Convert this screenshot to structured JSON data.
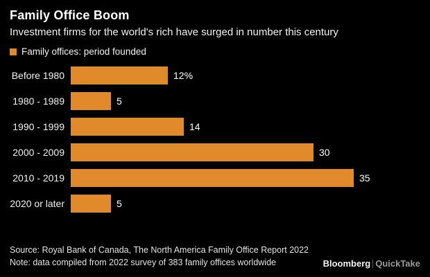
{
  "header": {
    "title": "Family Office Boom",
    "subtitle": "Investment firms for the world's rich have surged in number this century"
  },
  "legend": {
    "label": "Family offices: period founded",
    "swatch_color": "#E18A2B"
  },
  "chart_data": {
    "type": "bar",
    "orientation": "horizontal",
    "title": "Family Office Boom",
    "categories": [
      "Before 1980",
      "1980 - 1989",
      "1990 - 1999",
      "2000 - 2009",
      "2010 - 2019",
      "2020 or later"
    ],
    "values": [
      12,
      5,
      14,
      30,
      35,
      5
    ],
    "value_labels": [
      "12%",
      "5",
      "14",
      "30",
      "35",
      "5"
    ],
    "xlim": [
      0,
      35
    ],
    "bar_color": "#E18A2B",
    "grid": false,
    "legend_position": "top-left"
  },
  "footer": {
    "source": "Source: Royal Bank of Canada, The North America Family Office Report 2022",
    "note": "Note: data compiled from 2022 survey of 383 family offices worldwide"
  },
  "branding": {
    "primary": "Bloomberg",
    "secondary": "QuickTake"
  }
}
